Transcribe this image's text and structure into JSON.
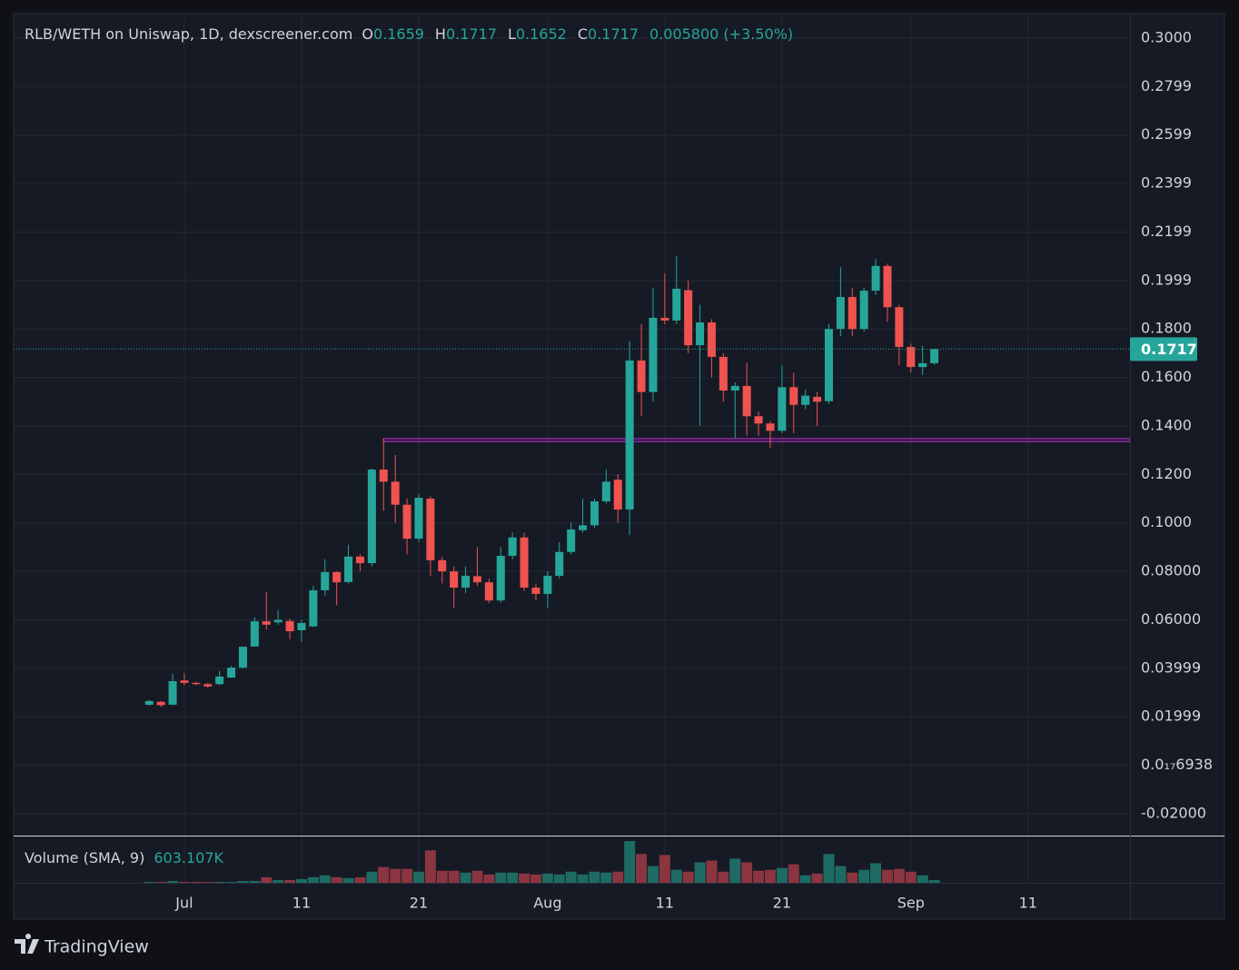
{
  "chart_data": {
    "type": "candlestick",
    "title": "RLB/WETH on Uniswap, 1D, dexscreener.com",
    "legend": [
      {
        "key": "O",
        "value": "0.1659"
      },
      {
        "key": "H",
        "value": "0.1717"
      },
      {
        "key": "L",
        "value": "0.1652"
      },
      {
        "key": "C",
        "value": "0.1717"
      }
    ],
    "change": "0.005800 (+3.50%)",
    "volume_label": "Volume (SMA, 9)",
    "volume_sma": "603.107K",
    "branding": "TradingView",
    "up_color": "#26a69a",
    "down_color": "#ef5350",
    "up_volume_color": "#1e6b63",
    "down_volume_color": "#8a3540",
    "grid": true,
    "xlim": [
      -14.57,
      80.7
    ],
    "xticks": [
      {
        "value": 0,
        "label": "Jul"
      },
      {
        "value": 10,
        "label": "11"
      },
      {
        "value": 20,
        "label": "21"
      },
      {
        "value": 31,
        "label": "Aug"
      },
      {
        "value": 41,
        "label": "11"
      },
      {
        "value": 51,
        "label": "21"
      },
      {
        "value": 62,
        "label": "Sep"
      },
      {
        "value": 72,
        "label": "11"
      }
    ],
    "ylim": [
      -0.029,
      0.3101
    ],
    "yticks": [
      {
        "value": 0.3,
        "label": "0.3000"
      },
      {
        "value": 0.28,
        "label": "0.2799"
      },
      {
        "value": 0.26,
        "label": "0.2599"
      },
      {
        "value": 0.24,
        "label": "0.2399"
      },
      {
        "value": 0.22,
        "label": "0.2199"
      },
      {
        "value": 0.2,
        "label": "0.1999"
      },
      {
        "value": 0.18,
        "label": "0.1800"
      },
      {
        "value": 0.16,
        "label": "0.1600"
      },
      {
        "value": 0.14,
        "label": "0.1400"
      },
      {
        "value": 0.12,
        "label": "0.1200"
      },
      {
        "value": 0.1,
        "label": "0.1000"
      },
      {
        "value": 0.08,
        "label": "0.08000"
      },
      {
        "value": 0.06,
        "label": "0.06000"
      },
      {
        "value": 0.04,
        "label": "0.03999"
      },
      {
        "value": 0.02,
        "label": "0.01999"
      },
      {
        "value": 0,
        "label": "0.0₁₇6938"
      },
      {
        "value": -0.02,
        "label": "-0.02000"
      }
    ],
    "last_price": 0.1717,
    "zone": {
      "x_start": 17,
      "top": 0.1348,
      "bottom": 0.1335,
      "color": "#9c27b0"
    },
    "x": [
      -3,
      -2,
      -1,
      0,
      1,
      2,
      3,
      4,
      5,
      6,
      7,
      8,
      9,
      10,
      11,
      12,
      13,
      14,
      15,
      16,
      17,
      18,
      19,
      20,
      21,
      22,
      23,
      24,
      25,
      26,
      27,
      28,
      29,
      30,
      31,
      32,
      33,
      34,
      35,
      36,
      37,
      38,
      39,
      40,
      41,
      42,
      43,
      44,
      45,
      46,
      47,
      48,
      49,
      50,
      51,
      52,
      53,
      54,
      55,
      56,
      57,
      58,
      59,
      60,
      61,
      62,
      63,
      64
    ],
    "open": [
      0.025,
      0.0262,
      0.025,
      0.035,
      0.034,
      0.0335,
      0.0335,
      0.0362,
      0.0403,
      0.049,
      0.0594,
      0.059,
      0.0595,
      0.0557,
      0.0573,
      0.0722,
      0.0797,
      0.0756,
      0.0861,
      0.0834,
      0.122,
      0.117,
      0.1075,
      0.0935,
      0.11,
      0.0846,
      0.08,
      0.0733,
      0.078,
      0.0755,
      0.068,
      0.0864,
      0.094,
      0.0733,
      0.0707,
      0.0782,
      0.088,
      0.097,
      0.099,
      0.1089,
      0.1178,
      0.1055,
      0.167,
      0.154,
      0.1846,
      0.1835,
      0.196,
      0.1733,
      0.1827,
      0.1685,
      0.1546,
      0.1565,
      0.144,
      0.141,
      0.138,
      0.156,
      0.1487,
      0.152,
      0.1502,
      0.18,
      0.1932,
      0.18,
      0.1958,
      0.206,
      0.189,
      0.1726,
      0.1643,
      0.1659
    ],
    "high": [
      0.027,
      0.0265,
      0.0377,
      0.038,
      0.0345,
      0.034,
      0.039,
      0.041,
      0.049,
      0.061,
      0.0714,
      0.064,
      0.0605,
      0.06,
      0.074,
      0.085,
      0.08,
      0.091,
      0.087,
      0.1225,
      0.1348,
      0.128,
      0.11,
      0.112,
      0.111,
      0.086,
      0.082,
      0.082,
      0.09,
      0.077,
      0.09,
      0.096,
      0.096,
      0.075,
      0.08,
      0.092,
      0.1,
      0.11,
      0.11,
      0.122,
      0.12,
      0.175,
      0.182,
      0.197,
      0.203,
      0.21,
      0.2,
      0.19,
      0.184,
      0.17,
      0.158,
      0.166,
      0.146,
      0.142,
      0.165,
      0.162,
      0.155,
      0.154,
      0.182,
      0.2055,
      0.197,
      0.197,
      0.209,
      0.207,
      0.19,
      0.174,
      0.173,
      0.1717
    ],
    "low": [
      0.0245,
      0.024,
      0.025,
      0.033,
      0.033,
      0.032,
      0.033,
      0.036,
      0.04,
      0.049,
      0.056,
      0.058,
      0.052,
      0.051,
      0.057,
      0.07,
      0.066,
      0.075,
      0.08,
      0.082,
      0.105,
      0.1,
      0.087,
      0.092,
      0.078,
      0.075,
      0.065,
      0.071,
      0.074,
      0.067,
      0.067,
      0.085,
      0.072,
      0.068,
      0.065,
      0.077,
      0.087,
      0.096,
      0.098,
      0.108,
      0.1,
      0.095,
      0.144,
      0.15,
      0.182,
      0.182,
      0.17,
      0.14,
      0.16,
      0.15,
      0.135,
      0.136,
      0.136,
      0.131,
      0.137,
      0.137,
      0.147,
      0.14,
      0.149,
      0.177,
      0.177,
      0.179,
      0.194,
      0.183,
      0.165,
      0.162,
      0.161,
      0.1652
    ],
    "close": [
      0.0265,
      0.0248,
      0.0347,
      0.034,
      0.0335,
      0.0325,
      0.0366,
      0.0403,
      0.0489,
      0.0594,
      0.058,
      0.06,
      0.0553,
      0.0587,
      0.0722,
      0.0797,
      0.0755,
      0.0861,
      0.0834,
      0.122,
      0.117,
      0.1075,
      0.0935,
      0.1104,
      0.0846,
      0.08,
      0.0733,
      0.0782,
      0.0755,
      0.068,
      0.0864,
      0.094,
      0.0733,
      0.0707,
      0.0782,
      0.088,
      0.0973,
      0.099,
      0.1089,
      0.117,
      0.1055,
      0.167,
      0.154,
      0.1846,
      0.1835,
      0.1966,
      0.1733,
      0.1827,
      0.1685,
      0.1546,
      0.1565,
      0.144,
      0.141,
      0.138,
      0.156,
      0.1487,
      0.1525,
      0.15,
      0.18,
      0.1932,
      0.18,
      0.1958,
      0.206,
      0.189,
      0.1726,
      0.1643,
      0.1659,
      0.1717
    ],
    "volume": [
      40000,
      40000,
      80000,
      40000,
      40000,
      40000,
      40000,
      40000,
      80000,
      80000,
      240000,
      120000,
      120000,
      160000,
      240000,
      320000,
      240000,
      200000,
      240000,
      480000,
      680000,
      600000,
      600000,
      480000,
      1400000,
      520000,
      520000,
      440000,
      520000,
      360000,
      440000,
      440000,
      400000,
      360000,
      400000,
      360000,
      480000,
      360000,
      480000,
      440000,
      480000,
      1800000,
      1240000,
      720000,
      1200000,
      560000,
      480000,
      880000,
      960000,
      480000,
      1040000,
      880000,
      520000,
      560000,
      640000,
      800000,
      320000,
      400000,
      1240000,
      720000,
      440000,
      560000,
      840000,
      560000,
      600000,
      480000,
      320000,
      120000
    ]
  }
}
